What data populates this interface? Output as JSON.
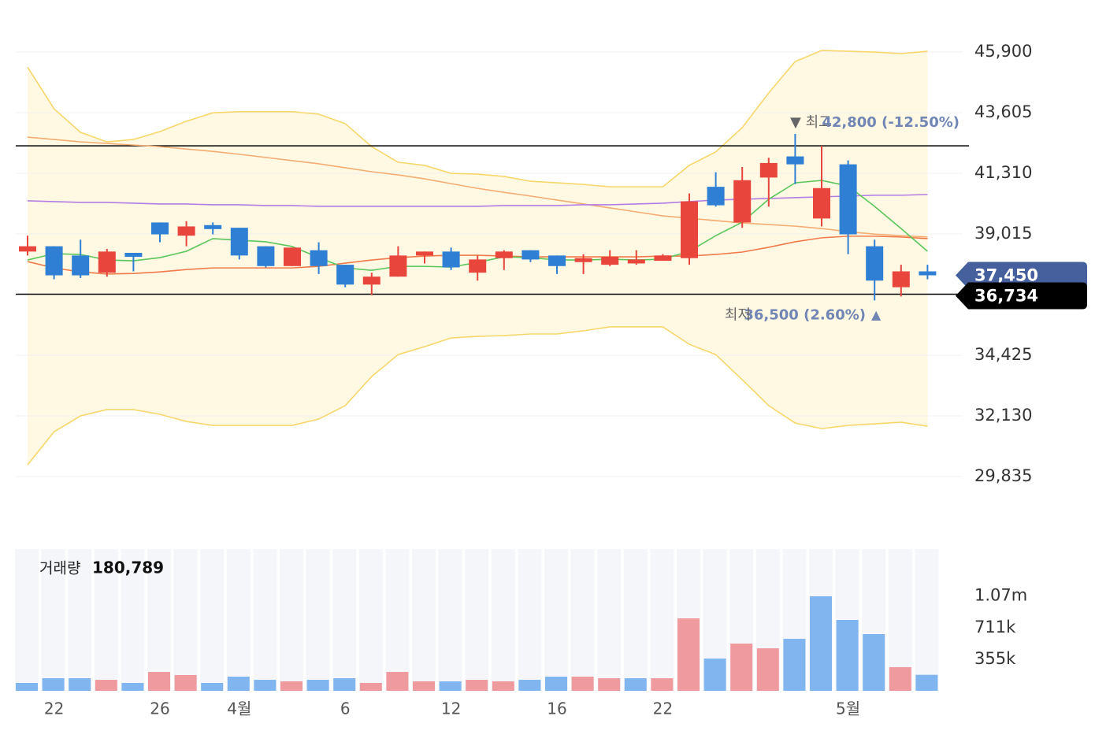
{
  "chart_data": {
    "type": "candlestick",
    "categories": [
      null,
      "22",
      null,
      null,
      null,
      "26",
      null,
      null,
      "4월",
      null,
      null,
      null,
      "6",
      null,
      null,
      null,
      "12",
      null,
      null,
      null,
      "16",
      null,
      null,
      null,
      "22",
      null,
      null,
      null,
      null,
      null,
      null,
      "5월",
      null,
      null,
      null
    ],
    "open": [
      38350,
      38550,
      38200,
      37550,
      38300,
      39450,
      38950,
      39350,
      39250,
      38550,
      37800,
      38400,
      37850,
      37100,
      37400,
      38200,
      38350,
      37550,
      38100,
      38400,
      38200,
      37950,
      37850,
      37900,
      38000,
      38100,
      40800,
      39450,
      41150,
      41950,
      39600,
      41650,
      38550,
      37000,
      37600
    ],
    "high": [
      38950,
      38550,
      38800,
      38450,
      38300,
      39450,
      39500,
      39450,
      39250,
      38550,
      38500,
      38700,
      37850,
      37550,
      38550,
      38350,
      38500,
      38200,
      38400,
      38400,
      38200,
      38250,
      38400,
      38400,
      38250,
      40550,
      41350,
      41550,
      41900,
      42800,
      42350,
      41800,
      38800,
      37850,
      37850
    ],
    "low": [
      38200,
      37300,
      37350,
      37400,
      37600,
      38700,
      38550,
      39000,
      38050,
      37750,
      37800,
      37500,
      37000,
      36700,
      37400,
      37900,
      37650,
      37250,
      37650,
      37950,
      37500,
      37500,
      37800,
      37850,
      38000,
      37850,
      40050,
      39250,
      40050,
      40900,
      39300,
      38250,
      36500,
      36650,
      37300
    ],
    "close": [
      38550,
      37450,
      37450,
      38350,
      38150,
      39000,
      39300,
      39200,
      38200,
      37800,
      38500,
      37800,
      37100,
      37400,
      38200,
      38350,
      37750,
      38050,
      38350,
      38050,
      37800,
      38100,
      38150,
      38050,
      38200,
      40250,
      40100,
      41050,
      41700,
      41650,
      40750,
      39000,
      37250,
      37600,
      37450
    ],
    "up_color": "#e8453c",
    "down_color": "#2f7fd4",
    "ylim": [
      29400,
      46500
    ],
    "yticks": [
      {
        "value": 45900,
        "label": "45,900"
      },
      {
        "value": 43605,
        "label": "43,605"
      },
      {
        "value": 41310,
        "label": "41,310"
      },
      {
        "value": 39015,
        "label": "39,015"
      },
      {
        "value": 34425,
        "label": "34,425"
      },
      {
        "value": 32130,
        "label": "32,130"
      },
      {
        "value": 29835,
        "label": "29,835"
      }
    ],
    "grid": true,
    "band": {
      "color": "#f7d76a",
      "fill": "#fff8e3",
      "upper": [
        45330,
        43750,
        42860,
        42500,
        42590,
        42890,
        43280,
        43600,
        43640,
        43640,
        43640,
        43550,
        43190,
        42320,
        41730,
        41610,
        41310,
        41280,
        41190,
        41010,
        40950,
        40890,
        40800,
        40800,
        40800,
        41610,
        42120,
        43040,
        44350,
        45540,
        45960,
        45930,
        45900,
        45840,
        45930
      ],
      "lower": [
        30280,
        31530,
        32130,
        32370,
        32370,
        32190,
        31920,
        31770,
        31770,
        31770,
        31770,
        32010,
        32520,
        33620,
        34450,
        34750,
        35080,
        35140,
        35170,
        35230,
        35230,
        35350,
        35500,
        35500,
        35500,
        34840,
        34450,
        33500,
        32520,
        31860,
        31650,
        31770,
        31830,
        31890,
        31740
      ]
    },
    "lines": [
      {
        "color": "#f3ad72",
        "values": [
          42680,
          42590,
          42500,
          42440,
          42380,
          42320,
          42230,
          42140,
          42030,
          41910,
          41790,
          41670,
          41520,
          41370,
          41250,
          41100,
          40920,
          40740,
          40590,
          40450,
          40300,
          40150,
          40000,
          39850,
          39700,
          39610,
          39520,
          39430,
          39370,
          39310,
          39220,
          39100,
          39010,
          38950,
          38900
        ]
      },
      {
        "color": "#b27ee6",
        "values": [
          40270,
          40240,
          40210,
          40210,
          40180,
          40150,
          40150,
          40120,
          40120,
          40090,
          40090,
          40060,
          40060,
          40060,
          40060,
          40060,
          40060,
          40060,
          40090,
          40090,
          40090,
          40120,
          40120,
          40150,
          40180,
          40240,
          40300,
          40330,
          40360,
          40390,
          40420,
          40450,
          40480,
          40480,
          40510
        ]
      },
      {
        "color": "#f07a4a",
        "values": [
          37970,
          37730,
          37580,
          37500,
          37520,
          37580,
          37670,
          37730,
          37730,
          37730,
          37730,
          37790,
          37910,
          38030,
          38120,
          38180,
          38210,
          38210,
          38180,
          38150,
          38150,
          38150,
          38150,
          38150,
          38180,
          38180,
          38240,
          38330,
          38510,
          38720,
          38870,
          38930,
          38930,
          38900,
          38840
        ]
      },
      {
        "color": "#5cc65c",
        "values": [
          38030,
          38270,
          38240,
          38030,
          38000,
          38120,
          38360,
          38840,
          38780,
          38720,
          38540,
          38120,
          37730,
          37640,
          37790,
          37790,
          37760,
          37940,
          38150,
          38120,
          38030,
          38030,
          38060,
          38030,
          38060,
          38360,
          38950,
          39460,
          40330,
          40950,
          41040,
          40830,
          40060,
          39220,
          38360
        ]
      }
    ],
    "hlines": [
      42350,
      36734
    ],
    "price_labels": [
      {
        "value": 37450,
        "label": "37,450",
        "color": "#46609e"
      },
      {
        "value": 36734,
        "label": "36,734",
        "color": "#000000"
      }
    ],
    "high_marker": {
      "prefix": "▼ 최고",
      "value": 42800,
      "label": "42,800 (-12.50%)"
    },
    "low_marker": {
      "prefix": "최저",
      "value": 36500,
      "label": "36,500 (2.60%)",
      "suffix": "▲"
    },
    "volume": {
      "title": "거래량",
      "current": {
        "value": 180789,
        "label": "180,789"
      },
      "values": [
        89000,
        142000,
        142000,
        124000,
        89000,
        213000,
        178000,
        89000,
        160000,
        124000,
        107000,
        124000,
        142000,
        89000,
        213000,
        107000,
        107000,
        124000,
        107000,
        124000,
        160000,
        160000,
        142000,
        142000,
        142000,
        818000,
        364000,
        533000,
        480000,
        587000,
        1067000,
        800000,
        640000,
        267000,
        180789
      ],
      "colors": [
        "#80b5f0",
        "#80b5f0",
        "#80b5f0",
        "#ef9a9e",
        "#80b5f0",
        "#ef9a9e",
        "#ef9a9e",
        "#80b5f0",
        "#80b5f0",
        "#80b5f0",
        "#ef9a9e",
        "#80b5f0",
        "#80b5f0",
        "#ef9a9e",
        "#ef9a9e",
        "#ef9a9e",
        "#80b5f0",
        "#ef9a9e",
        "#ef9a9e",
        "#80b5f0",
        "#80b5f0",
        "#ef9a9e",
        "#ef9a9e",
        "#80b5f0",
        "#ef9a9e",
        "#ef9a9e",
        "#80b5f0",
        "#ef9a9e",
        "#ef9a9e",
        "#80b5f0",
        "#80b5f0",
        "#80b5f0",
        "#80b5f0",
        "#ef9a9e",
        "#80b5f0"
      ],
      "ylim": [
        0,
        1600000
      ],
      "yticks": [
        {
          "value": 355000,
          "label": "355k"
        },
        {
          "value": 711000,
          "label": "711k"
        },
        {
          "value": 1070000,
          "label": "1.07m"
        }
      ]
    }
  }
}
